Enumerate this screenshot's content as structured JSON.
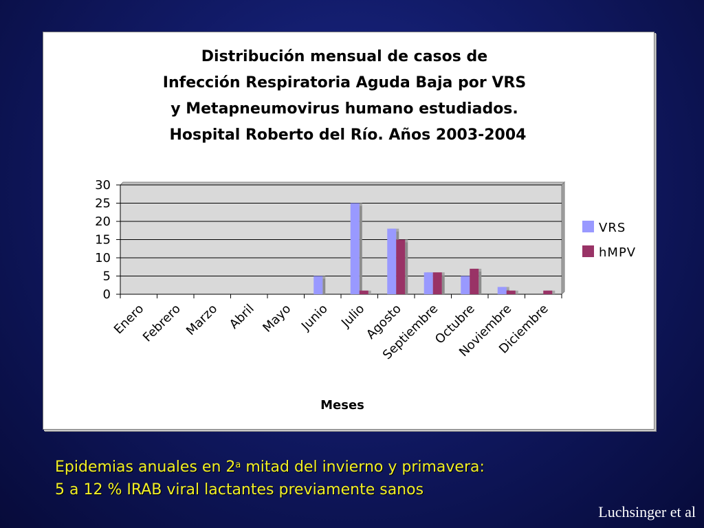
{
  "chart_data": {
    "type": "bar",
    "title_lines": [
      "Distribución mensual de casos de",
      "Infección Respiratoria Aguda Baja por VRS",
      "y Metapneumovirus humano estudiados.",
      "Hospital Roberto del Río. Años 2003-2004"
    ],
    "categories": [
      "Enero",
      "Febrero",
      "Marzo",
      "Abril",
      "Mayo",
      "Junio",
      "Julio",
      "Agosto",
      "Septiembre",
      "Octubre",
      "Noviembre",
      "Diciembre"
    ],
    "series": [
      {
        "name": "VRS",
        "color": "#9999ff",
        "values": [
          0,
          0,
          0,
          0,
          0,
          5,
          25,
          18,
          6,
          5,
          2,
          0
        ]
      },
      {
        "name": "hMPV",
        "color": "#993366",
        "values": [
          0,
          0,
          0,
          0,
          0,
          0,
          1,
          15,
          6,
          7,
          1,
          1
        ]
      }
    ],
    "y_ticks": [
      "30",
      "25",
      "20",
      "15",
      "10",
      "5",
      "0"
    ],
    "ylim": [
      0,
      30
    ],
    "xlabel": "Meses",
    "ylabel": "",
    "legend_position": "right",
    "grid": true,
    "plot_background": "#d9d9d9"
  },
  "caption": {
    "line1_before": "Epidemias anuales en 2",
    "line1_sup": "a",
    "line1_after": " mitad del invierno y primavera:",
    "line2": "5 a 12 % IRAB viral lactantes previamente sanos"
  },
  "author": "Luchsinger et al"
}
